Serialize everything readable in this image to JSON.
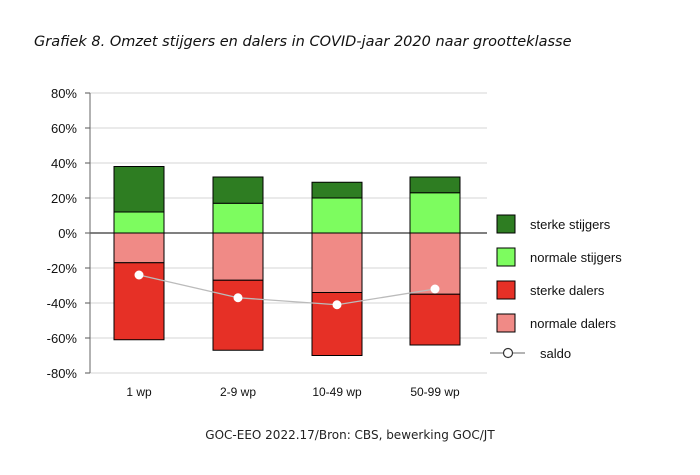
{
  "title": "Grafiek 8. Omzet stijgers en dalers in COVID-jaar 2020 naar grootteklasse",
  "source": "GOC-EEO 2022.17/Bron: CBS, bewerking GOC/JT",
  "colors": {
    "sterke_stijgers": "#2e7d22",
    "normale_stijgers": "#7dfc5f",
    "sterke_dalers": "#e63026",
    "normale_dalers": "#f08a86",
    "saldo_line": "#bbbbbb"
  },
  "chart_data": {
    "type": "bar",
    "stacked": true,
    "categories": [
      "1 wp",
      "2-9 wp",
      "10-49 wp",
      "50-99 wp"
    ],
    "ylim": [
      -80,
      80
    ],
    "yticks": [
      -80,
      -60,
      -40,
      -20,
      0,
      20,
      40,
      60,
      80
    ],
    "ytick_labels": [
      "-80%",
      "-60%",
      "-40%",
      "-20%",
      "0%",
      "20%",
      "40%",
      "60%",
      "80%"
    ],
    "grid": "horizontal",
    "legend_position": "right",
    "series": [
      {
        "name": "sterke stijgers",
        "values": [
          26,
          15,
          9,
          9
        ]
      },
      {
        "name": "normale stijgers",
        "values": [
          12,
          17,
          20,
          23
        ]
      },
      {
        "name": "sterke dalers",
        "values": [
          -44,
          -40,
          -36,
          -29
        ]
      },
      {
        "name": "normale dalers",
        "values": [
          -17,
          -27,
          -34,
          -35
        ]
      },
      {
        "name": "saldo",
        "type": "line",
        "values": [
          -24,
          -37,
          -41,
          -32
        ]
      }
    ]
  }
}
